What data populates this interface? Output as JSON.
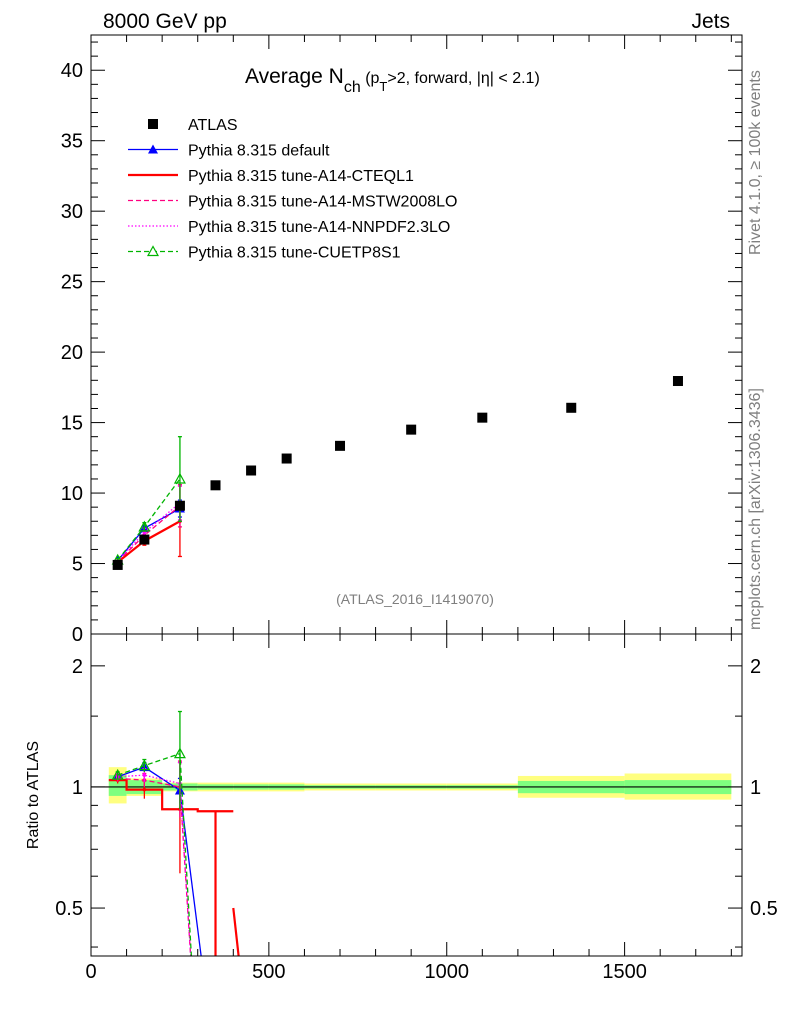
{
  "header": {
    "left": "8000 GeV pp",
    "right": "Jets",
    "side_top": "Rivet 4.1.0, ≥ 100k events",
    "side_bottom": "mcplots.cern.ch [arXiv:1306.3436]",
    "watermark": "(ATLAS_2016_I1419070)"
  },
  "chart_data": [
    {
      "type": "scatter",
      "title_main": "Average N",
      "title_sub": "ch",
      "title_rest_1": " (p",
      "title_rest_sub": "T",
      "title_rest_2": ">2, forward, |η| < 2.1)",
      "xlabel": "",
      "ylabel": "",
      "xlim": [
        0,
        1830
      ],
      "ylim": [
        0,
        42.5
      ],
      "yticks": [
        5,
        10,
        15,
        20,
        25,
        30,
        35,
        40
      ],
      "ytick_labels": [
        "5",
        "10",
        "15",
        "20",
        "25",
        "30",
        "35",
        "40"
      ],
      "ytick_zero_label": "0",
      "series": [
        {
          "name": "ATLAS",
          "color": "#000000",
          "style": "square",
          "x": [
            75,
            150,
            250,
            350,
            450,
            550,
            700,
            900,
            1100,
            1350,
            1650
          ],
          "y": [
            4.9,
            6.7,
            9.1,
            10.55,
            11.6,
            12.45,
            13.35,
            14.5,
            15.35,
            16.05,
            17.95
          ]
        },
        {
          "name": "Pythia 8.315 default",
          "color": "#0000ff",
          "style": "solid-triangle",
          "x": [
            75,
            150,
            250
          ],
          "y": [
            5.2,
            7.5,
            8.9
          ],
          "yerr": [
            0.1,
            0.2,
            0.6
          ]
        },
        {
          "name": "Pythia 8.315 tune-A14-CTEQL1",
          "color": "#ff0000",
          "style": "solid-thick",
          "x": [
            75,
            150,
            250
          ],
          "y": [
            5.1,
            6.6,
            8.0
          ],
          "yerr": [
            0.1,
            0.3,
            2.5
          ]
        },
        {
          "name": "Pythia 8.315 tune-A14-MSTW2008LO",
          "color": "#ff0080",
          "style": "dashed",
          "x": [
            75,
            150,
            250
          ],
          "y": [
            5.15,
            7.0,
            9.1
          ],
          "yerr": [
            0.1,
            0.3,
            1.5
          ]
        },
        {
          "name": "Pythia 8.315 tune-A14-NNPDF2.3LO",
          "color": "#ff00ff",
          "style": "dotted",
          "x": [
            75,
            150,
            250
          ],
          "y": [
            5.2,
            7.2,
            9.3
          ],
          "yerr": [
            0.1,
            0.3,
            1.2
          ]
        },
        {
          "name": "Pythia 8.315 tune-CUETP8S1",
          "color": "#00b400",
          "style": "dashed-open-triangle",
          "x": [
            75,
            150,
            250
          ],
          "y": [
            5.25,
            7.6,
            11.0
          ],
          "yerr": [
            0.1,
            0.3,
            3.0
          ]
        }
      ]
    },
    {
      "type": "line",
      "ylabel": "Ratio to ATLAS",
      "xlim": [
        0,
        1830
      ],
      "ylim": [
        0.38,
        2.4
      ],
      "xticks": [
        0,
        500,
        1000,
        1500
      ],
      "xtick_labels": [
        "0",
        "500",
        "1000",
        "1500"
      ],
      "yticks": [
        0.5,
        1,
        2
      ],
      "ytick_labels": [
        "0.5",
        "1",
        "2"
      ],
      "band_bins": [
        {
          "x0": 50,
          "x1": 100,
          "inner": [
            0.95,
            1.07
          ],
          "outer": [
            0.91,
            1.12
          ]
        },
        {
          "x0": 100,
          "x1": 200,
          "inner": [
            0.96,
            1.04
          ],
          "outer": [
            0.95,
            1.05
          ]
        },
        {
          "x0": 200,
          "x1": 300,
          "inner": [
            0.98,
            1.02
          ],
          "outer": [
            0.975,
            1.025
          ]
        },
        {
          "x0": 300,
          "x1": 400,
          "inner": [
            0.985,
            1.015
          ],
          "outer": [
            0.975,
            1.025
          ]
        },
        {
          "x0": 400,
          "x1": 500,
          "inner": [
            0.985,
            1.015
          ],
          "outer": [
            0.975,
            1.025
          ]
        },
        {
          "x0": 500,
          "x1": 600,
          "inner": [
            0.985,
            1.015
          ],
          "outer": [
            0.975,
            1.025
          ]
        },
        {
          "x0": 600,
          "x1": 800,
          "inner": [
            0.99,
            1.01
          ],
          "outer": [
            0.98,
            1.02
          ]
        },
        {
          "x0": 800,
          "x1": 1000,
          "inner": [
            0.99,
            1.01
          ],
          "outer": [
            0.98,
            1.02
          ]
        },
        {
          "x0": 1000,
          "x1": 1200,
          "inner": [
            0.99,
            1.01
          ],
          "outer": [
            0.98,
            1.02
          ]
        },
        {
          "x0": 1200,
          "x1": 1500,
          "inner": [
            0.965,
            1.035
          ],
          "outer": [
            0.94,
            1.065
          ]
        },
        {
          "x0": 1500,
          "x1": 1800,
          "inner": [
            0.96,
            1.04
          ],
          "outer": [
            0.93,
            1.08
          ]
        }
      ],
      "band_colors": {
        "inner": "#7fff7f",
        "outer": "#ffff80"
      },
      "series": [
        {
          "name": "Pythia 8.315 default",
          "color": "#0000ff",
          "x": [
            75,
            150,
            250,
            350
          ],
          "y": [
            1.06,
            1.12,
            0.98,
            0.2
          ],
          "yerr": [
            0.02,
            0.03,
            0.07,
            0
          ]
        },
        {
          "name": "Pythia 8.315 tune-A14-CTEQL1",
          "color": "#ff0000",
          "steps": [
            [
              50,
              100,
              1.04
            ],
            [
              100,
              200,
              0.985
            ],
            [
              200,
              300,
              0.88
            ],
            [
              300,
              400,
              0.87
            ]
          ],
          "drop_x": 350,
          "drop_to": 0.2,
          "x": [
            75,
            150,
            250
          ],
          "y": [
            1.04,
            0.985,
            0.88
          ],
          "yerr": [
            0.02,
            0.05,
            0.27
          ]
        },
        {
          "name": "Pythia 8.315 tune-A14-MSTW2008LO",
          "color": "#ff0080",
          "x": [
            75,
            150,
            250,
            300
          ],
          "y": [
            1.05,
            1.04,
            1.0,
            0.2
          ],
          "yerr": [
            0.02,
            0.04,
            0.16,
            0
          ]
        },
        {
          "name": "Pythia 8.315 tune-A14-NNPDF2.3LO",
          "color": "#ff00ff",
          "x": [
            75,
            150,
            250,
            300
          ],
          "y": [
            1.06,
            1.07,
            1.02,
            0.2
          ],
          "yerr": [
            0.02,
            0.04,
            0.13,
            0
          ]
        },
        {
          "name": "Pythia 8.315 tune-CUETP8S1",
          "color": "#00b400",
          "x": [
            75,
            150,
            250,
            300
          ],
          "y": [
            1.07,
            1.13,
            1.21,
            0.2
          ],
          "yerr": [
            0.02,
            0.04,
            0.33,
            0
          ]
        }
      ]
    }
  ]
}
